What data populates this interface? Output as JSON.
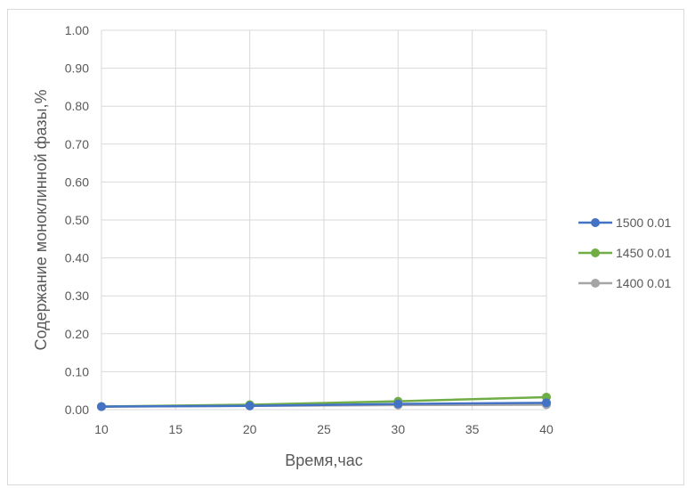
{
  "chart_data": {
    "type": "line",
    "title": "",
    "xlabel": "Время,час",
    "ylabel": "Содержание моноклинной фазы,%",
    "xlim": [
      10,
      40
    ],
    "ylim": [
      0,
      1
    ],
    "x_ticks": [
      "10",
      "15",
      "20",
      "25",
      "30",
      "35",
      "40"
    ],
    "y_ticks": [
      "0.00",
      "0.10",
      "0.20",
      "0.30",
      "0.40",
      "0.50",
      "0.60",
      "0.70",
      "0.80",
      "0.90",
      "1.00"
    ],
    "grid": true,
    "legend_position": "right",
    "series": [
      {
        "name": "1500 0.01",
        "color": "#4472c4",
        "x": [
          10,
          20,
          30,
          40
        ],
        "values": [
          0.008,
          0.01,
          0.015,
          0.018
        ]
      },
      {
        "name": "1450 0.01",
        "color": "#70ad47",
        "x": [
          10,
          20,
          30,
          40
        ],
        "values": [
          0.008,
          0.013,
          0.022,
          0.033
        ]
      },
      {
        "name": "1400 0.01",
        "color": "#a5a5a5",
        "x": [
          10,
          20,
          30,
          40
        ],
        "values": [
          0.008,
          0.01,
          0.012,
          0.013
        ]
      }
    ]
  }
}
